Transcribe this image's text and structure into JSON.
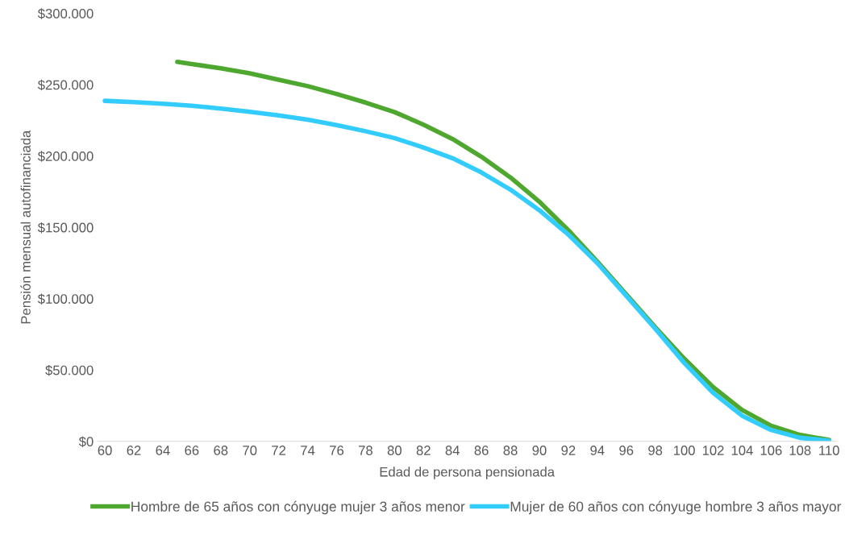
{
  "chart_data": {
    "type": "line",
    "xlabel": "Edad de persona pensionada",
    "ylabel": "Pensión mensual autofinanciada",
    "xlim": [
      59.5,
      110.5
    ],
    "xticks": [
      60,
      62,
      64,
      66,
      68,
      70,
      72,
      74,
      76,
      78,
      80,
      82,
      84,
      86,
      88,
      90,
      92,
      94,
      96,
      98,
      100,
      102,
      104,
      106,
      108,
      110
    ],
    "ylim": [
      0,
      300000
    ],
    "yticks": [
      {
        "value": 0,
        "label": "$0"
      },
      {
        "value": 50000,
        "label": "$50.000"
      },
      {
        "value": 100000,
        "label": "$100.000"
      },
      {
        "value": 150000,
        "label": "$150.000"
      },
      {
        "value": 200000,
        "label": "$200.000"
      },
      {
        "value": 250000,
        "label": "$250.000"
      },
      {
        "value": 300000,
        "label": "$300.000"
      }
    ],
    "grid": false,
    "legend": "bottom",
    "marker": "none",
    "line_style": "solid",
    "series": [
      {
        "name": "Hombre de 65 años con cónyuge mujer 3 años menor",
        "color": "#4ea72e",
        "x": [
          65,
          66,
          68,
          70,
          72,
          74,
          76,
          78,
          80,
          82,
          84,
          86,
          88,
          90,
          92,
          94,
          96,
          98,
          100,
          102,
          104,
          106,
          108,
          110
        ],
        "values": [
          266000,
          264500,
          261500,
          258000,
          253500,
          249000,
          243500,
          237500,
          230800,
          222000,
          212000,
          199500,
          185000,
          168000,
          148000,
          126000,
          103000,
          80000,
          58000,
          38000,
          22000,
          11000,
          4500,
          1000
        ]
      },
      {
        "name": "Mujer de 60 años con cónyuge hombre 3 años mayor",
        "color": "#33ccff",
        "x": [
          60,
          62,
          64,
          66,
          68,
          70,
          72,
          74,
          76,
          78,
          80,
          82,
          84,
          86,
          88,
          90,
          92,
          94,
          96,
          98,
          100,
          102,
          104,
          106,
          108,
          110
        ],
        "values": [
          238700,
          237800,
          236700,
          235300,
          233300,
          231000,
          228500,
          225500,
          221700,
          217400,
          212600,
          206000,
          198500,
          188500,
          176500,
          162000,
          145000,
          125000,
          102000,
          79000,
          55000,
          34000,
          18000,
          8000,
          2500,
          500
        ]
      }
    ]
  }
}
